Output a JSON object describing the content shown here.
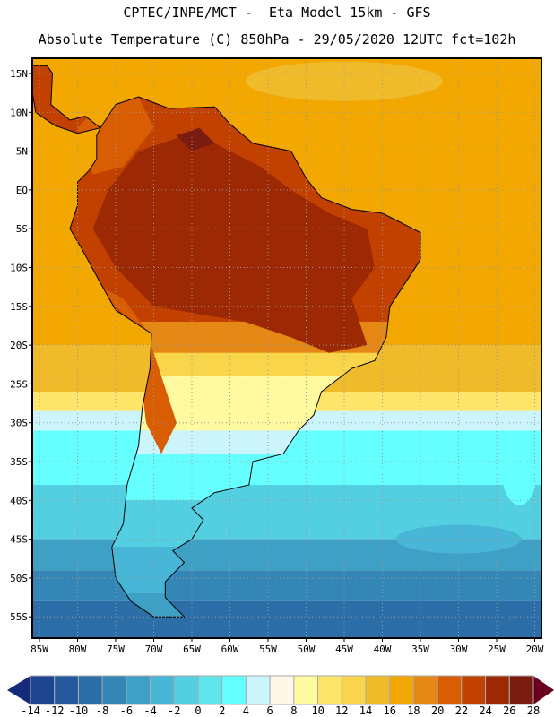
{
  "header": {
    "title_line1": "CPTEC/INPE/MCT -  Eta Model 15km - GFS",
    "title_line2": "Absolute Temperature (C) 850hPa - 29/05/2020 12UTC fct=102h"
  },
  "map": {
    "variable": "Absolute Temperature (C) 850hPa",
    "lat_labels": [
      "15N",
      "10N",
      "5N",
      "EQ",
      "5S",
      "10S",
      "15S",
      "20S",
      "25S",
      "30S",
      "35S",
      "40S",
      "45S",
      "50S",
      "55S"
    ],
    "lats": [
      15,
      10,
      5,
      0,
      -5,
      -10,
      -15,
      -20,
      -25,
      -30,
      -35,
      -40,
      -45,
      -50,
      -55
    ],
    "lon_labels": [
      "85W",
      "80W",
      "75W",
      "70W",
      "65W",
      "60W",
      "55W",
      "50W",
      "45W",
      "40W",
      "35W",
      "30W",
      "25W",
      "20W"
    ],
    "lons": [
      -85,
      -80,
      -75,
      -70,
      -65,
      -60,
      -55,
      -50,
      -45,
      -40,
      -35,
      -30,
      -25,
      -20
    ]
  },
  "colorbar": {
    "labels": [
      "-14",
      "-12",
      "-10",
      "-8",
      "-6",
      "-4",
      "-2",
      "0",
      "2",
      "4",
      "6",
      "8",
      "10",
      "12",
      "14",
      "16",
      "18",
      "20",
      "22",
      "24",
      "26",
      "28"
    ],
    "colors": [
      "#1e4590",
      "#245a9c",
      "#2b6ea8",
      "#3486b6",
      "#3fa0c6",
      "#48b6d6",
      "#52cfe0",
      "#5ee4ea",
      "#66ffff",
      "#ccf4fb",
      "#fff8e8",
      "#fffaa0",
      "#fde56a",
      "#f8d54a",
      "#efbb2a",
      "#f2a800",
      "#e58714",
      "#d95d02",
      "#c24000",
      "#9c2904",
      "#7a1c10"
    ],
    "under_color": "#152a7a",
    "over_color": "#6a0020"
  }
}
